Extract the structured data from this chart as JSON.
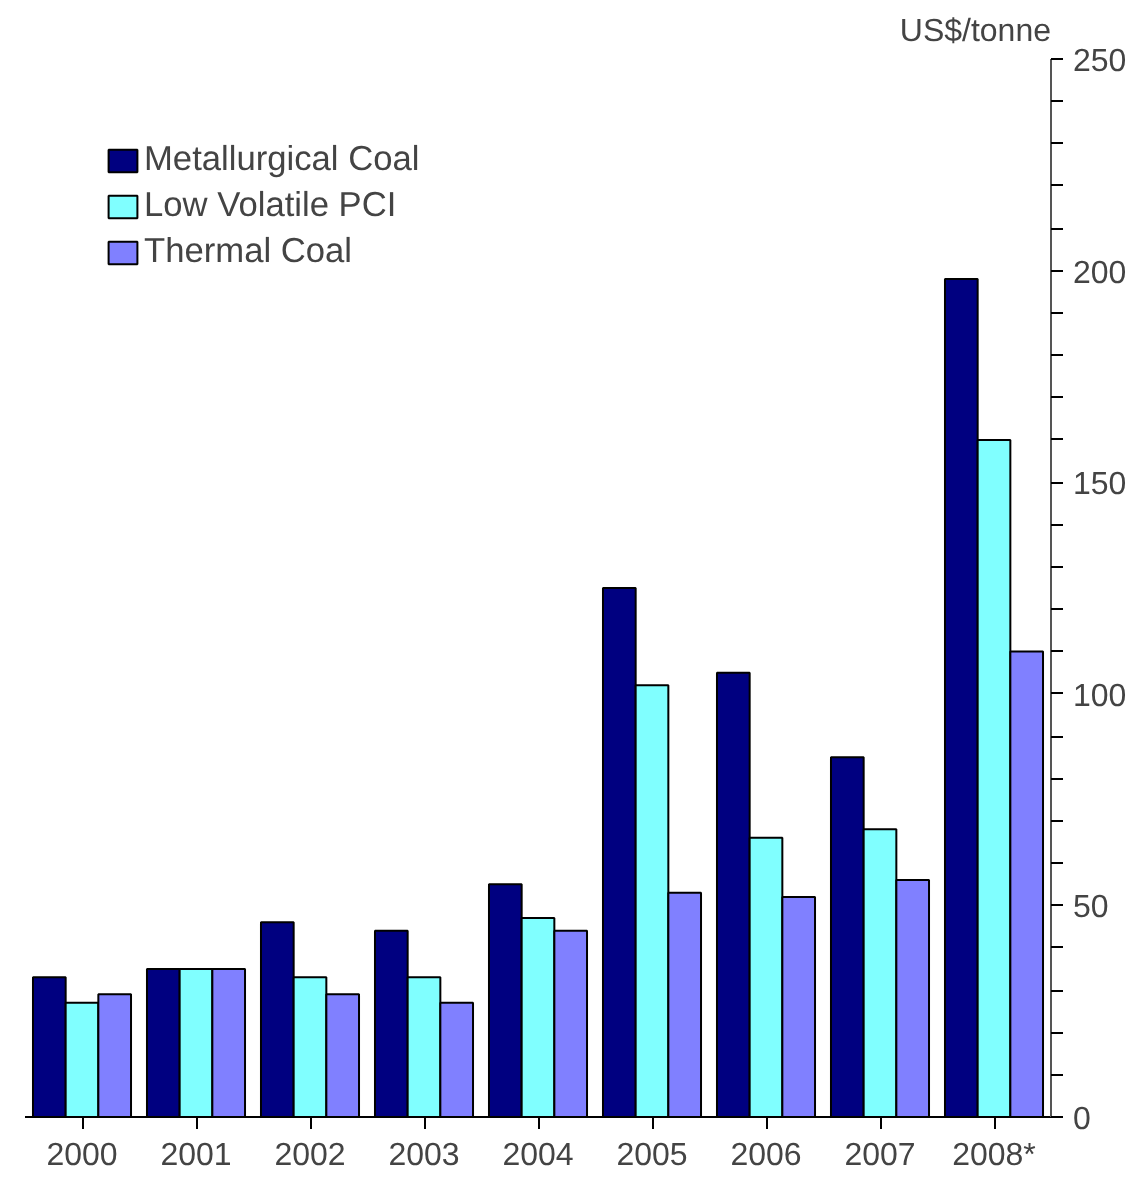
{
  "chart_data": {
    "type": "bar",
    "ylabel": "US$/tonne",
    "categories": [
      "2000",
      "2001",
      "2002",
      "2003",
      "2004",
      "2005",
      "2006",
      "2007",
      "2008*"
    ],
    "series": [
      {
        "name": "Metallurgical Coal",
        "color": "#000080",
        "values": [
          33,
          35,
          46,
          44,
          55,
          125,
          105,
          85,
          198
        ]
      },
      {
        "name": "Low Volatile PCI",
        "color": "#80ffff",
        "values": [
          27,
          35,
          33,
          33,
          47,
          102,
          66,
          68,
          160
        ]
      },
      {
        "name": "Thermal Coal",
        "color": "#8080ff",
        "values": [
          29,
          35,
          29,
          27,
          44,
          53,
          52,
          56,
          110
        ]
      }
    ],
    "ylim": [
      0,
      250
    ],
    "yticks": [
      0,
      {
        "value": 10,
        "label": null
      },
      {
        "value": 20,
        "label": null
      },
      {
        "value": 30,
        "label": null
      },
      {
        "value": 40,
        "label": null
      },
      50,
      {
        "value": 60,
        "label": null
      },
      {
        "value": 70,
        "label": null
      },
      {
        "value": 80,
        "label": null
      },
      {
        "value": 90,
        "label": null
      },
      100,
      {
        "value": 110,
        "label": null
      },
      {
        "value": 120,
        "label": null
      },
      {
        "value": 130,
        "label": null
      },
      {
        "value": 140,
        "label": null
      },
      150,
      {
        "value": 160,
        "label": null
      },
      {
        "value": 170,
        "label": null
      },
      {
        "value": 180,
        "label": null
      },
      {
        "value": 190,
        "label": null
      },
      200,
      {
        "value": 210,
        "label": null
      },
      {
        "value": 220,
        "label": null
      },
      {
        "value": 230,
        "label": null
      },
      {
        "value": 240,
        "label": null
      },
      250
    ],
    "grid": false,
    "legend": "top left"
  }
}
